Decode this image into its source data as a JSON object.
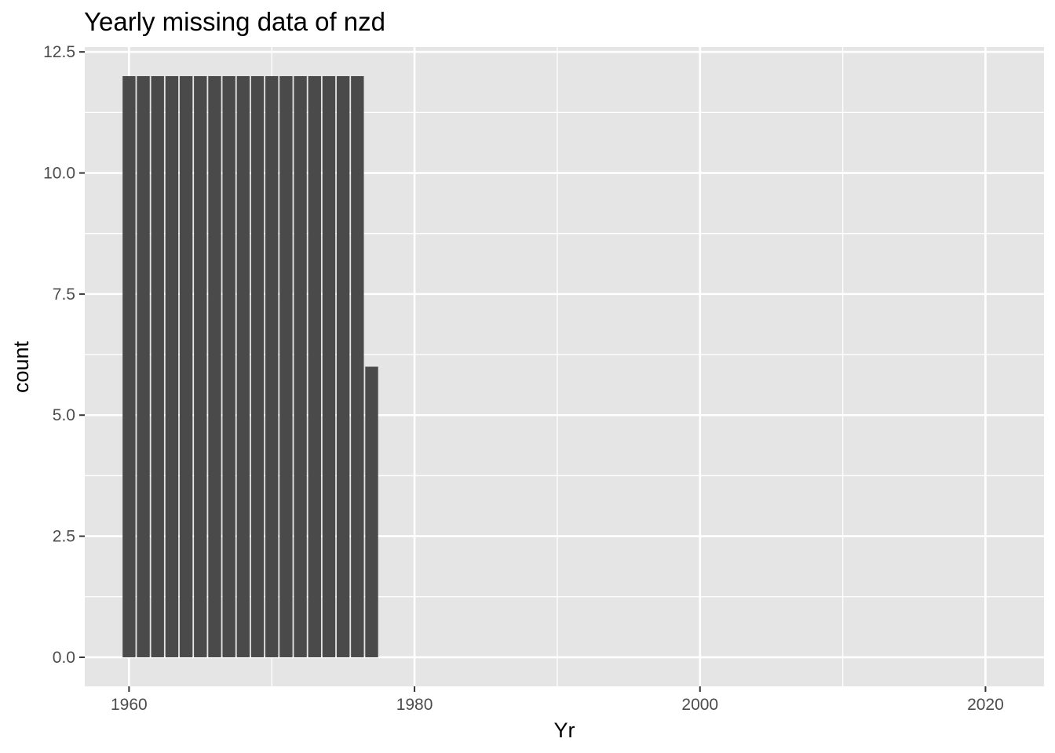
{
  "chart_data": {
    "type": "bar",
    "title": "Yearly missing data of nzd",
    "xlabel": "Yr",
    "ylabel": "count",
    "x": [
      1960,
      1961,
      1962,
      1963,
      1964,
      1965,
      1966,
      1967,
      1968,
      1969,
      1970,
      1971,
      1972,
      1973,
      1974,
      1975,
      1976,
      1977
    ],
    "values": [
      12,
      12,
      12,
      12,
      12,
      12,
      12,
      12,
      12,
      12,
      12,
      12,
      12,
      12,
      12,
      12,
      12,
      6
    ],
    "xlim": [
      1956.9,
      2024.1
    ],
    "ylim": [
      -0.6,
      12.6
    ],
    "xticks": [
      1960,
      1980,
      2000,
      2020
    ],
    "xtick_labels": [
      "1960",
      "1980",
      "2000",
      "2020"
    ],
    "yticks": [
      0,
      2.5,
      5,
      7.5,
      10,
      12.5
    ],
    "ytick_labels": [
      "0.0",
      "2.5",
      "5.0",
      "7.5",
      "10.0",
      "12.5"
    ],
    "grid": true,
    "colors": {
      "bar": "#4a4a4a",
      "panel": "#e5e5e5",
      "grid": "#ffffff"
    }
  }
}
